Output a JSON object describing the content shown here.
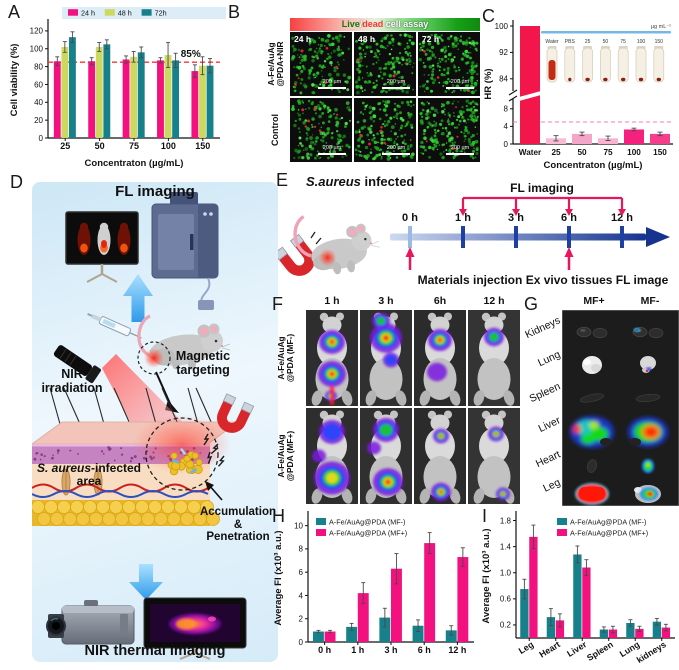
{
  "panels": {
    "a": {
      "label": "A",
      "chart_ref": 0
    },
    "b": {
      "label": "B",
      "banner": {
        "live": "Live",
        "slash": "/",
        "dead": "dead",
        "rest": " cell assay"
      },
      "row1_line1": "A-Fe/AuAg",
      "row1_line2": "@PDA+NIR",
      "row2": "Control",
      "cols": [
        "24 h",
        "48 h",
        "72 h"
      ],
      "scale_bar": "200 µm"
    },
    "c": {
      "label": "C",
      "chart_ref": 1
    },
    "d": {
      "label": "D",
      "fl_title": "FL imaging",
      "nir_label": "NIR irradiation",
      "magnetic_label": "Magnetic targeting",
      "sa_italic": "S. aureus",
      "sa_rest": "-infected",
      "sa_line2": "area",
      "accumulation": "Accumulation",
      "amp": "&",
      "penetration": "Penetration",
      "thermal_title": "NIR thermal imaging"
    },
    "e": {
      "label": "E",
      "infected_italic": "S.aureus",
      "infected_rest": " infected",
      "fl_label": "FL imaging",
      "ticks": [
        "0 h",
        "1 h",
        "3 h",
        "6 h",
        "12 h"
      ],
      "injection_label": "Materials injection",
      "exvivo_label": "Ex vivo tissues FL image"
    },
    "f": {
      "label": "F",
      "cols": [
        "1 h",
        "3 h",
        "6h",
        "12 h"
      ],
      "row1_line1": "A-Fe/AuAg",
      "row1_line2": "@PDA (MF-)",
      "row2_line1": "A-Fe/AuAg",
      "row2_line2": "@PDA (MF+)"
    },
    "g": {
      "label": "G",
      "cols": [
        "MF+",
        "MF-"
      ],
      "rows": [
        "Kidneys",
        "Lung",
        "Spleen",
        "Liver",
        "Heart",
        "Leg"
      ]
    },
    "h": {
      "label": "H",
      "chart_ref": 2
    },
    "i": {
      "label": "I",
      "chart_ref": 3
    }
  },
  "chart_data": [
    {
      "id": "A",
      "type": "bar",
      "categories": [
        "25",
        "50",
        "75",
        "100",
        "150"
      ],
      "series": [
        {
          "name": "24 h",
          "color": "#F2117E",
          "values": [
            86,
            86,
            88,
            87,
            75
          ],
          "errors": [
            5,
            4,
            4,
            3,
            7
          ]
        },
        {
          "name": "48 h",
          "color": "#CDD95E",
          "values": [
            102,
            102,
            91,
            93,
            81
          ],
          "errors": [
            6,
            5,
            6,
            14,
            10
          ]
        },
        {
          "name": "72h",
          "color": "#17818B",
          "values": [
            113,
            105,
            96,
            87,
            81
          ],
          "errors": [
            6,
            5,
            6,
            8,
            8
          ]
        }
      ],
      "xlabel": "Concentraton (µg/mL)",
      "ylabel": "Cell viability (%)",
      "ylim": [
        0,
        130
      ],
      "yticks": [
        0,
        20,
        40,
        60,
        80,
        100,
        120
      ],
      "legend_position": "top",
      "ref_line": {
        "value": 85,
        "label": "85%",
        "color": "#FF3030"
      }
    },
    {
      "id": "C",
      "type": "bar_broken_axis",
      "categories": [
        "Water",
        "25",
        "50",
        "75",
        "100",
        "150"
      ],
      "values": [
        100,
        1.3,
        2.3,
        1.3,
        3.3,
        2.3
      ],
      "errors": [
        0,
        0.6,
        0.4,
        0.5,
        0.3,
        0.4
      ],
      "bar_colors": [
        "#F3164A",
        "#F8BBD4",
        "#F5A6C8",
        "#F8B4CE",
        "#F4227E",
        "#F43E8C"
      ],
      "xlabel": "Concentraton (µg/mL)",
      "ylabel": "HR (%)",
      "yticks_lower": [
        0,
        4,
        8
      ],
      "yticks_upper": [
        84,
        92,
        100
      ],
      "lower_range": [
        0,
        10
      ],
      "upper_range": [
        80,
        100
      ],
      "ref_line": {
        "value": 5,
        "color": "#F878C0"
      },
      "inset": {
        "tube_labels": [
          "Water",
          "PBS",
          "25",
          "50",
          "75",
          "100",
          "150"
        ],
        "unit": "µg mL⁻¹"
      }
    },
    {
      "id": "H",
      "type": "bar",
      "categories": [
        "0 h",
        "1 h",
        "3 h",
        "6 h",
        "12 h"
      ],
      "series": [
        {
          "name": "A-Fe/AuAg@PDA (MF-)",
          "color": "#17818B",
          "values": [
            0.9,
            1.3,
            2.1,
            1.4,
            1.0
          ],
          "errors": [
            0.1,
            0.3,
            0.8,
            0.5,
            0.4
          ]
        },
        {
          "name": "A-Fe/AuAg@PDA (MF+)",
          "color": "#F2117E",
          "values": [
            0.9,
            4.2,
            6.3,
            8.5,
            7.3
          ],
          "errors": [
            0.1,
            0.9,
            1.3,
            0.9,
            0.8
          ]
        }
      ],
      "xlabel": "",
      "ylabel": "Average FI  (x10³ a.u.)",
      "ylim": [
        0,
        11
      ],
      "yticks": [
        0,
        2,
        4,
        6,
        8,
        10
      ],
      "legend_position": "upper-left"
    },
    {
      "id": "I",
      "type": "bar",
      "categories": [
        "Leg",
        "Heart",
        "Liver",
        "Spleen",
        "Lung",
        "kidneys"
      ],
      "series": [
        {
          "name": "A-Fe/AuAg@PDA (MF-)",
          "color": "#17818B",
          "values": [
            0.75,
            0.32,
            1.28,
            0.13,
            0.23,
            0.25
          ],
          "errors": [
            0.15,
            0.13,
            0.13,
            0.04,
            0.05,
            0.05
          ]
        },
        {
          "name": "A-Fe/AuAg@PDA (MF+)",
          "color": "#F2117E",
          "values": [
            1.55,
            0.27,
            1.08,
            0.13,
            0.14,
            0.16
          ],
          "errors": [
            0.18,
            0.1,
            0.12,
            0.05,
            0.04,
            0.05
          ]
        }
      ],
      "xlabel": "",
      "ylabel": "Average FI  (x10³ a.u.)",
      "ylim": [
        0,
        1.9
      ],
      "yticks": [
        0.2,
        0.6,
        1.0,
        1.4,
        1.8
      ],
      "legend_position": "upper-right",
      "xtick_rotation": -32,
      "tick_decimals": 1
    }
  ]
}
